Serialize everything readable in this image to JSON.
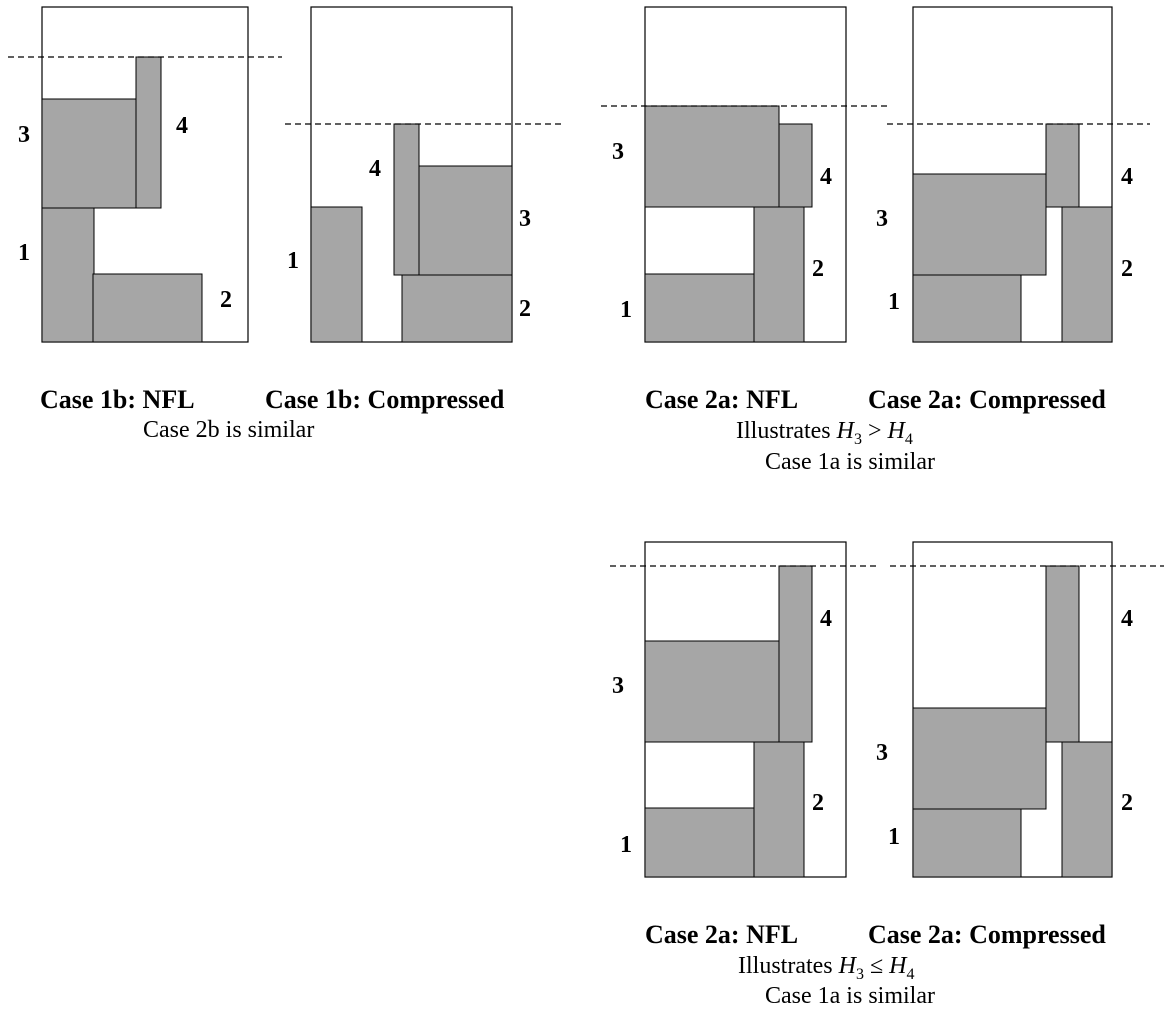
{
  "figures": [
    {
      "labels": [
        "1",
        "2",
        "3",
        "4"
      ],
      "caption_nfl": "Case 1b: NFL",
      "caption_compressed": "Case 1b: Compressed",
      "notes": [
        "Case 2b is similar"
      ]
    },
    {
      "labels": [
        "1",
        "2",
        "3",
        "4"
      ],
      "caption_nfl": "Case 2a: NFL",
      "caption_compressed": "Case 2a: Compressed",
      "notes": [
        "Illustrates",
        "Case 1a is similar"
      ],
      "relation": {
        "lhs": "H",
        "lhs_sub": "3",
        "op": ">",
        "rhs": "H",
        "rhs_sub": "4"
      }
    },
    {
      "labels": [
        "1",
        "2",
        "3",
        "4"
      ],
      "caption_nfl": "Case 2a: NFL",
      "caption_compressed": "Case 2a: Compressed",
      "notes": [
        "Illustrates",
        "Case 1a is similar"
      ],
      "relation": {
        "lhs": "H",
        "lhs_sub": "3",
        "op": "≤",
        "rhs": "H",
        "rhs_sub": "4"
      }
    }
  ],
  "colors": {
    "block_fill": "#a6a6a6",
    "stroke": "#000000",
    "background": "#ffffff"
  }
}
